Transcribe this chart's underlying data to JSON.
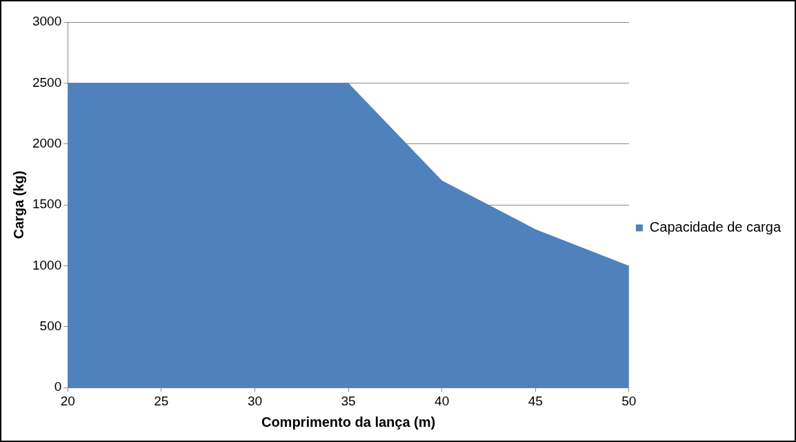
{
  "chart_data": {
    "type": "area",
    "xlabel": "Comprimento da lança (m)",
    "ylabel": "Carga (kg)",
    "x": [
      20,
      25,
      30,
      35,
      40,
      45,
      50
    ],
    "series": [
      {
        "name": "Capacidade de carga",
        "color": "#4f81bd",
        "values": [
          2500,
          2500,
          2500,
          2500,
          1700,
          1300,
          1000
        ]
      }
    ],
    "xlim": [
      20,
      50
    ],
    "xticks": [
      20,
      25,
      30,
      35,
      40,
      45,
      50
    ],
    "ylim": [
      0,
      3000
    ],
    "yticks": [
      0,
      500,
      1000,
      1500,
      2000,
      2500,
      3000
    ],
    "grid": "y",
    "legend": "right"
  }
}
